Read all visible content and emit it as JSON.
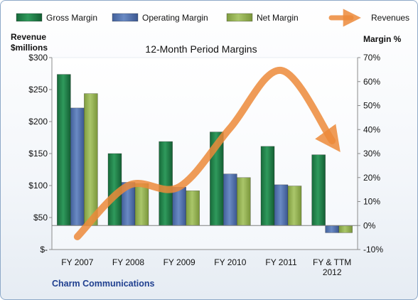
{
  "chart_data": {
    "type": "bar",
    "title": "12-Month Period Margins",
    "company": "Charm Communications",
    "categories": [
      [
        "FY 2007"
      ],
      [
        "FY 2008"
      ],
      [
        "FY 2009"
      ],
      [
        "FY 2010"
      ],
      [
        "FY 2011"
      ],
      [
        "FY & TTM",
        "2012"
      ]
    ],
    "y_left": {
      "label_lines": [
        "Revenue",
        "$millions"
      ],
      "range": [
        0,
        300
      ],
      "ticks": [
        0,
        50,
        100,
        150,
        200,
        250,
        300
      ],
      "tick_labels": [
        "$-",
        "$50",
        "$100",
        "$150",
        "$200",
        "$250",
        "$300"
      ]
    },
    "y_right": {
      "label": "Margin %",
      "range": [
        -10,
        70
      ],
      "ticks": [
        -10,
        0,
        10,
        20,
        30,
        40,
        50,
        60,
        70
      ],
      "tick_labels": [
        "-10%",
        "0%",
        "10%",
        "20%",
        "30%",
        "40%",
        "50%",
        "60%",
        "70%"
      ]
    },
    "series": [
      {
        "name": "Gross Margin",
        "kind": "bar",
        "axis": "right",
        "color": "#1f7a46",
        "values": [
          63,
          30,
          35,
          39,
          33,
          29.5
        ]
      },
      {
        "name": "Operating Margin",
        "kind": "bar",
        "axis": "right",
        "color": "#4f6fa8",
        "values": [
          49,
          18,
          16,
          21.5,
          17,
          -3
        ]
      },
      {
        "name": "Net Margin",
        "kind": "bar",
        "axis": "right",
        "color": "#92b04f",
        "values": [
          55,
          17.5,
          14.5,
          20,
          16.5,
          -3
        ]
      },
      {
        "name": "Revenues",
        "kind": "line",
        "axis": "left",
        "color": "#ec8a3a",
        "values": [
          20,
          100,
          98,
          190,
          280,
          170
        ]
      }
    ],
    "legend_position": "top",
    "grid": false
  }
}
